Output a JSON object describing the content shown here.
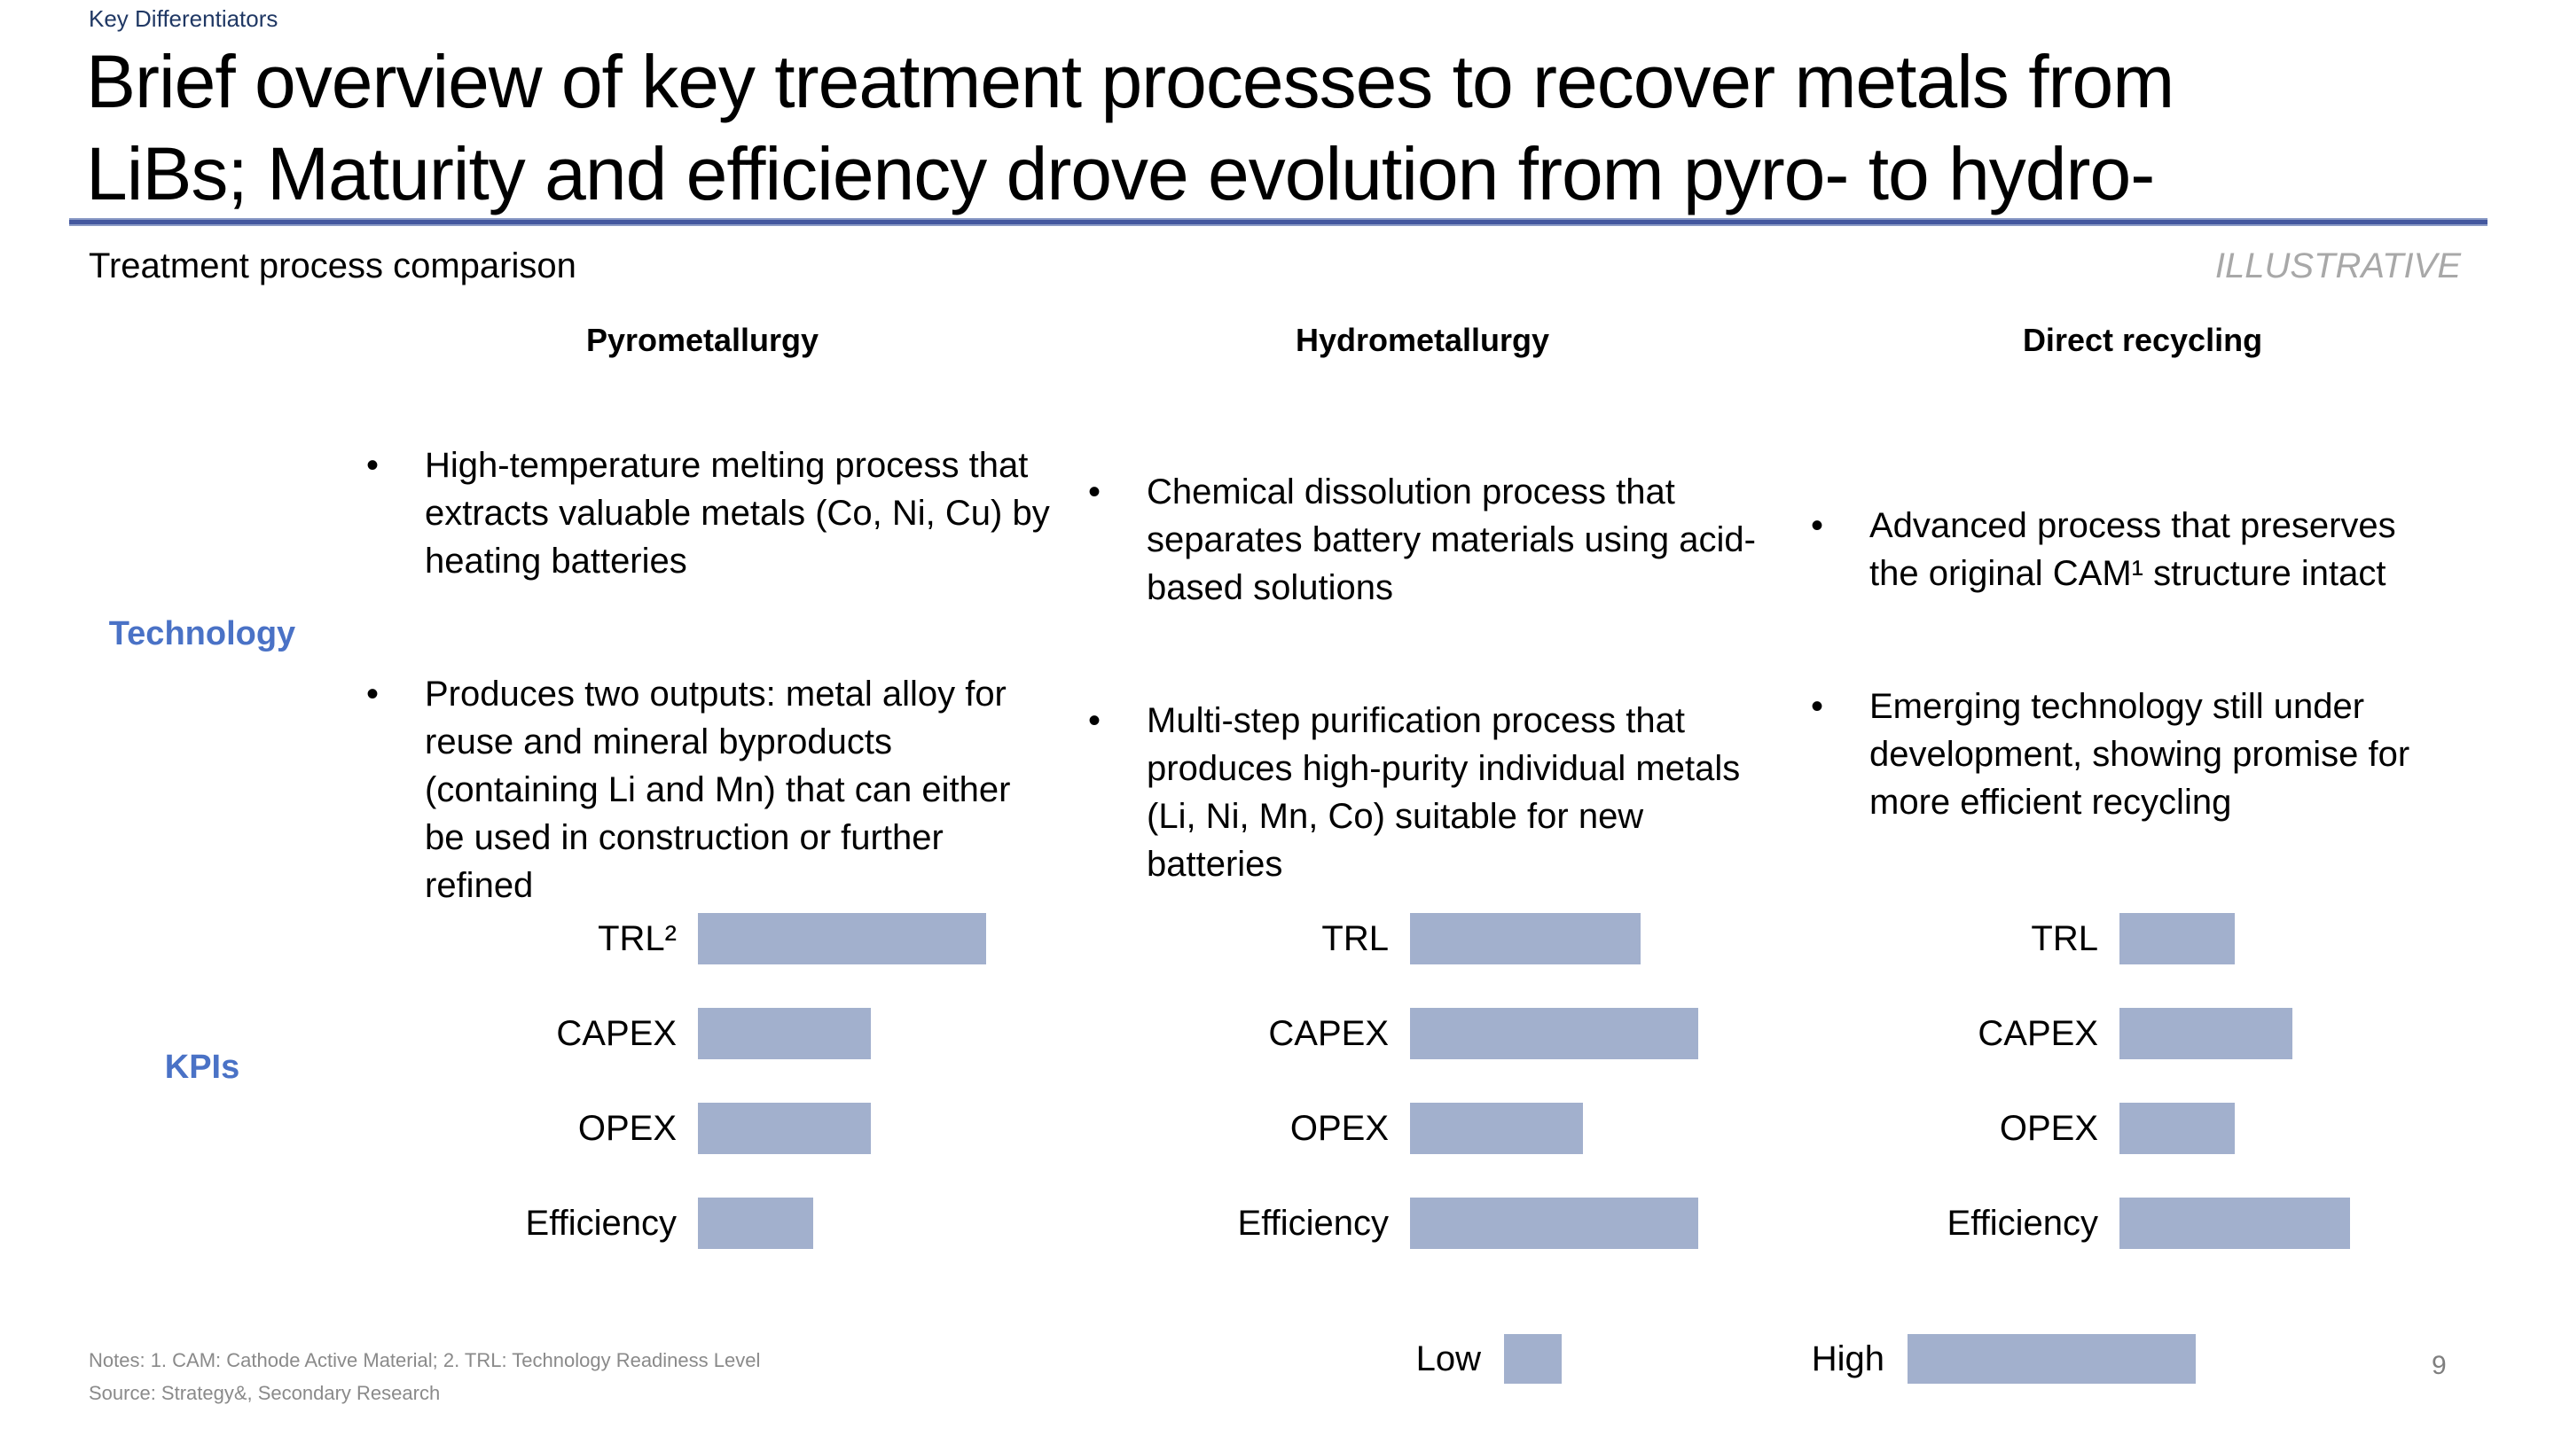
{
  "slide": {
    "eyebrow": "Key Differentiators",
    "title_line1": "Brief overview of key treatment processes to recover metals from",
    "title_line2": "LiBs; Maturity and efficiency drove evolution from pyro- to hydro-",
    "subtitle": "Treatment process comparison",
    "tag": "ILLUSTRATIVE",
    "notes": "Notes: 1. CAM: Cathode Active Material; 2. TRL: Technology Readiness Level",
    "source": "Source: Strategy&, Secondary Research",
    "page_number": "9"
  },
  "rows": {
    "technology_label": "Technology",
    "kpis_label": "KPIs"
  },
  "columns": [
    {
      "header": "Pyrometallurgy",
      "bullets": [
        "High-temperature melting process that extracts valuable metals (Co, Ni, Cu) by heating batteries",
        "Produces two outputs: metal alloy for reuse and mineral byproducts (containing Li and Mn) that can either be used in construction or further refined"
      ],
      "kpis": [
        {
          "label": "TRL²",
          "value": 100
        },
        {
          "label": "CAPEX",
          "value": 60
        },
        {
          "label": "OPEX",
          "value": 60
        },
        {
          "label": "Efficiency",
          "value": 40
        }
      ]
    },
    {
      "header": "Hydrometallurgy",
      "bullets": [
        "Chemical dissolution process that separates battery materials using acid-based solutions",
        "Multi-step purification process that produces high-purity individual metals (Li, Ni, Mn, Co) suitable for new batteries"
      ],
      "kpis": [
        {
          "label": "TRL",
          "value": 80
        },
        {
          "label": "CAPEX",
          "value": 100
        },
        {
          "label": "OPEX",
          "value": 60
        },
        {
          "label": "Efficiency",
          "value": 100
        }
      ]
    },
    {
      "header": "Direct recycling",
      "bullets": [
        "Advanced process that preserves the original CAM¹ structure intact",
        "Emerging technology still under development, showing promise for more efficient recycling"
      ],
      "kpis": [
        {
          "label": "TRL",
          "value": 40
        },
        {
          "label": "CAPEX",
          "value": 60
        },
        {
          "label": "OPEX",
          "value": 40
        },
        {
          "label": "Efficiency",
          "value": 80
        }
      ]
    }
  ],
  "legend": {
    "low_label": "Low",
    "low_value": 20,
    "high_label": "High",
    "high_value": 100
  },
  "colors": {
    "bar_fill": "#a2b0cd",
    "accent_blue": "#4a72c6",
    "eyebrow_navy": "#203864",
    "divider_blue": "#44589f",
    "tag_gray": "#a8a8a8",
    "notes_gray": "#8a8a8a"
  }
}
